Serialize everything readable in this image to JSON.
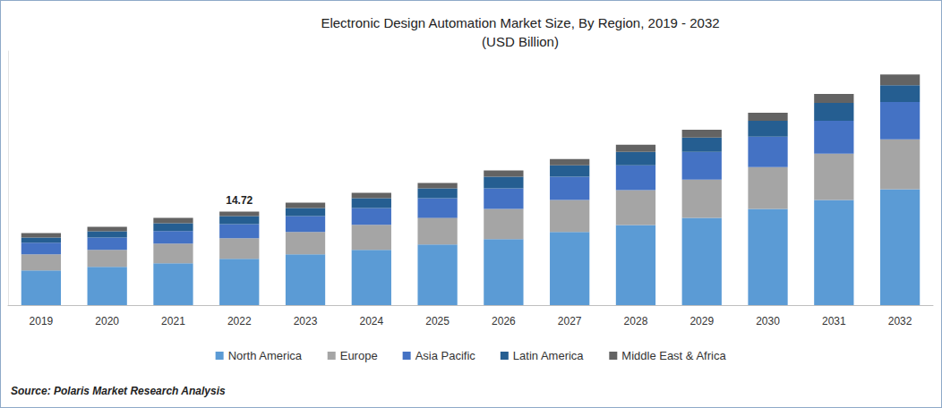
{
  "chart_data": {
    "type": "bar",
    "title": "Electronic Design Automation Market Size, By Region, 2019 - 2032",
    "subtitle": "(USD Billion)",
    "source": "Source: Polaris Market Research Analysis",
    "categories": [
      "2019",
      "2020",
      "2021",
      "2022",
      "2023",
      "2024",
      "2025",
      "2026",
      "2027",
      "2028",
      "2029",
      "2030",
      "2031",
      "2032"
    ],
    "series": [
      {
        "name": "North America",
        "color": "#5b9bd5",
        "values": [
          5.47,
          6.03,
          6.59,
          7.29,
          7.99,
          8.7,
          9.54,
          10.38,
          11.5,
          12.62,
          13.74,
          15.15,
          16.55,
          18.23
        ]
      },
      {
        "name": "Europe",
        "color": "#a5a5a5",
        "values": [
          2.52,
          2.66,
          3.09,
          3.23,
          3.51,
          3.93,
          4.21,
          4.77,
          5.05,
          5.47,
          6.03,
          6.59,
          7.29,
          7.85
        ]
      },
      {
        "name": "Asia Pacific",
        "color": "#4472c4",
        "values": [
          1.82,
          1.96,
          1.96,
          2.24,
          2.52,
          2.66,
          3.09,
          3.23,
          3.65,
          3.93,
          4.35,
          4.77,
          5.19,
          5.89
        ]
      },
      {
        "name": "Latin America",
        "color": "#255e91",
        "values": [
          0.84,
          0.98,
          1.26,
          1.26,
          1.26,
          1.54,
          1.54,
          1.82,
          1.82,
          2.1,
          2.24,
          2.52,
          2.81,
          2.66
        ]
      },
      {
        "name": "Middle East & Africa",
        "color": "#636363",
        "values": [
          0.7,
          0.7,
          0.84,
          0.7,
          0.84,
          0.84,
          0.84,
          0.98,
          0.98,
          1.12,
          1.26,
          1.26,
          1.4,
          1.68
        ]
      }
    ],
    "annotations": [
      {
        "category": "2022",
        "value": 14.72,
        "label": "14.72"
      }
    ],
    "ylim": [
      0,
      40
    ],
    "stacked": true,
    "grid": false,
    "legend": "bottom",
    "tick_labels": "x"
  }
}
